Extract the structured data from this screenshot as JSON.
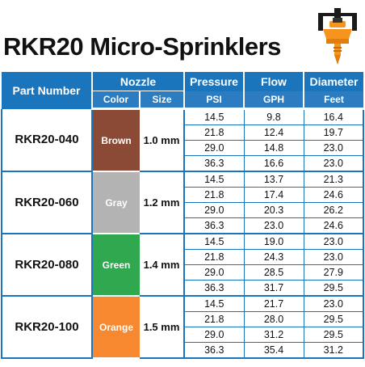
{
  "title": "RKR20 Micro-Sprinklers",
  "header": {
    "part_number": "Part Number",
    "nozzle": "Nozzle",
    "pressure": "Pressure",
    "flow": "Flow",
    "diameter": "Diameter",
    "color": "Color",
    "size": "Size",
    "psi": "PSI",
    "gph": "GPH",
    "feet": "Feet"
  },
  "colors": {
    "header_blue": "#1b75bc",
    "brown": "#8b4a36",
    "gray": "#b3b3b3",
    "green": "#2fa84f",
    "orange": "#f7882f"
  },
  "products": [
    {
      "part": "RKR20-040",
      "color": "Brown",
      "size": "1.0 mm",
      "swatch": "#8b4a36",
      "rows": [
        {
          "psi": "14.5",
          "gph": "9.8",
          "feet": "16.4"
        },
        {
          "psi": "21.8",
          "gph": "12.4",
          "feet": "19.7"
        },
        {
          "psi": "29.0",
          "gph": "14.8",
          "feet": "23.0"
        },
        {
          "psi": "36.3",
          "gph": "16.6",
          "feet": "23.0"
        }
      ]
    },
    {
      "part": "RKR20-060",
      "color": "Gray",
      "size": "1.2 mm",
      "swatch": "#b3b3b3",
      "rows": [
        {
          "psi": "14.5",
          "gph": "13.7",
          "feet": "21.3"
        },
        {
          "psi": "21.8",
          "gph": "17.4",
          "feet": "24.6"
        },
        {
          "psi": "29.0",
          "gph": "20.3",
          "feet": "26.2"
        },
        {
          "psi": "36.3",
          "gph": "23.0",
          "feet": "24.6"
        }
      ]
    },
    {
      "part": "RKR20-080",
      "color": "Green",
      "size": "1.4 mm",
      "swatch": "#2fa84f",
      "rows": [
        {
          "psi": "14.5",
          "gph": "19.0",
          "feet": "23.0"
        },
        {
          "psi": "21.8",
          "gph": "24.3",
          "feet": "23.0"
        },
        {
          "psi": "29.0",
          "gph": "28.5",
          "feet": "27.9"
        },
        {
          "psi": "36.3",
          "gph": "31.7",
          "feet": "29.5"
        }
      ]
    },
    {
      "part": "RKR20-100",
      "color": "Orange",
      "size": "1.5 mm",
      "swatch": "#f7882f",
      "rows": [
        {
          "psi": "14.5",
          "gph": "21.7",
          "feet": "23.0"
        },
        {
          "psi": "21.8",
          "gph": "28.0",
          "feet": "29.5"
        },
        {
          "psi": "29.0",
          "gph": "31.2",
          "feet": "29.5"
        },
        {
          "psi": "36.3",
          "gph": "35.4",
          "feet": "31.2"
        }
      ]
    }
  ]
}
